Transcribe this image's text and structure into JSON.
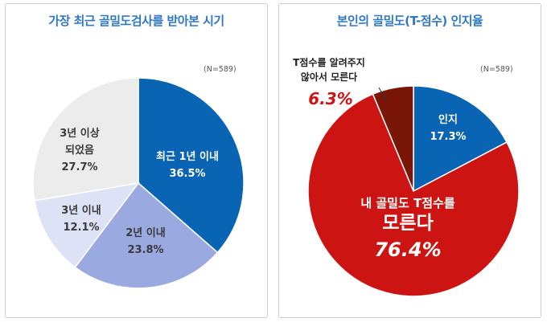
{
  "chart_data": [
    {
      "type": "pie",
      "title": "가장 최근 골밀도검사를 받아본 시기",
      "note": "(N=589)",
      "slices": [
        {
          "label": "최근 1년 이내",
          "value": 36.5,
          "display": "36.5%",
          "color": "#0a64b4"
        },
        {
          "label": "2년 이내",
          "value": 23.8,
          "display": "23.8%",
          "color": "#9aa9e0"
        },
        {
          "label": "3년 이내",
          "value": 12.1,
          "display": "12.1%",
          "color": "#dde2f6"
        },
        {
          "label": "3년 이상 되었음",
          "value": 27.7,
          "display": "27.7%",
          "color": "#ececec"
        }
      ]
    },
    {
      "type": "pie",
      "title": "본인의 골밀도(T-점수) 인지율",
      "note": "(N=589)",
      "slices": [
        {
          "label": "인지",
          "value": 17.3,
          "display": "17.3%",
          "color": "#0a64b4"
        },
        {
          "label": "내 골밀도 T점수를 모른다",
          "value": 76.4,
          "display": "76.4%",
          "color": "#cc1412"
        },
        {
          "label": "T점수를 알려주지 않아서 모른다",
          "value": 6.3,
          "display": "6.3%",
          "color": "#7a1608"
        }
      ]
    }
  ]
}
